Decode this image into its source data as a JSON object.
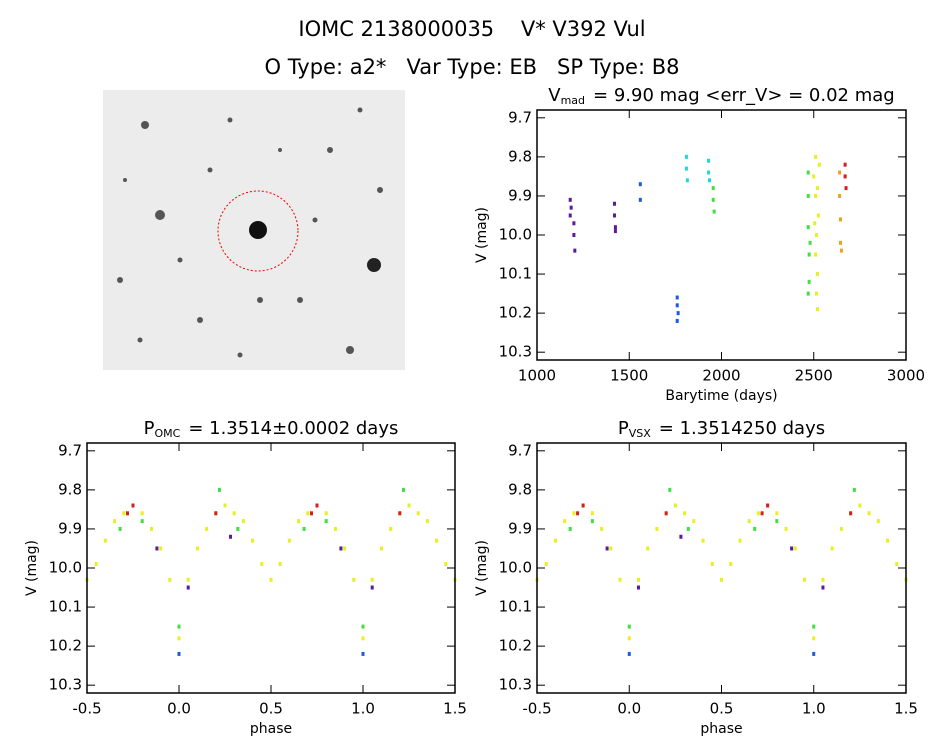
{
  "header": {
    "title": "IOMC 2138000035    V* V392 Vul",
    "subtitle": "O Type: a2*   Var Type: EB   SP Type: B8"
  },
  "chart_data": [
    {
      "type": "scatter",
      "title": "V",
      "title_sub": "mad",
      "title_rest": "= 9.90 mag <err_V> = 0.02 mag",
      "xlabel": "Barytime (days)",
      "ylabel": "V (mag)",
      "xlim": [
        1000,
        3000
      ],
      "xticks": [
        1000,
        1500,
        2000,
        2500,
        3000
      ],
      "ylim": [
        10.32,
        9.68
      ],
      "yticks": [
        9.7,
        9.8,
        9.9,
        {
          "value": 10,
          "label": "10.0"
        },
        10.1,
        10.2,
        10.3
      ],
      "series": [
        {
          "color": "#5a1a9a",
          "x": [
            1180,
            1180,
            1185,
            1200,
            1200,
            1205,
            1420,
            1420,
            1425,
            1425
          ],
          "values": [
            9.91,
            9.95,
            9.93,
            9.97,
            10.0,
            10.04,
            9.92,
            9.95,
            9.98,
            9.99
          ]
        },
        {
          "color": "#1e5adc",
          "x": [
            1560,
            1560,
            1760,
            1760,
            1765,
            1760
          ],
          "values": [
            9.87,
            9.91,
            10.16,
            10.18,
            10.2,
            10.22
          ]
        },
        {
          "color": "#20d8d8",
          "x": [
            1810,
            1810,
            1815,
            1930,
            1930,
            1935
          ],
          "values": [
            9.8,
            9.83,
            9.86,
            9.81,
            9.84,
            9.86
          ]
        },
        {
          "color": "#40e040",
          "x": [
            1955,
            1955,
            1960,
            2470,
            2470,
            2470,
            2475,
            2475,
            2470,
            2480
          ],
          "values": [
            9.88,
            9.91,
            9.94,
            9.84,
            9.9,
            9.98,
            10.05,
            10.12,
            10.15,
            10.02
          ]
        },
        {
          "color": "#e8f020",
          "x": [
            2500,
            2510,
            2510,
            2515,
            2520,
            2520,
            2525,
            2530,
            2510,
            2515,
            2520,
            2505
          ],
          "values": [
            9.85,
            9.8,
            9.9,
            10.0,
            10.1,
            10.19,
            9.95,
            9.82,
            10.05,
            10.15,
            9.88,
            9.97
          ]
        },
        {
          "color": "#f0a020",
          "x": [
            2640,
            2640,
            2645,
            2645,
            2650
          ],
          "values": [
            9.84,
            9.9,
            9.96,
            10.02,
            10.04
          ]
        },
        {
          "color": "#d02020",
          "x": [
            2670,
            2670,
            2675
          ],
          "values": [
            9.82,
            9.85,
            9.88
          ]
        }
      ]
    },
    {
      "type": "scatter",
      "title": "P",
      "title_sub": "OMC",
      "title_rest": "= 1.3514±0.0002 days",
      "xlabel": "phase",
      "ylabel": "V (mag)",
      "xlim": [
        -0.5,
        1.5
      ],
      "xticks": [
        -0.5,
        {
          "value": 0,
          "label": "0.0"
        },
        0.5,
        {
          "value": 1,
          "label": "1.0"
        },
        1.5
      ],
      "ylim": [
        10.32,
        9.68
      ],
      "yticks": [
        9.7,
        9.8,
        9.9,
        {
          "value": 10,
          "label": "10.0"
        },
        10.1,
        10.2,
        10.3
      ],
      "series": [
        {
          "color": "#e8f020",
          "x": [
            -0.5,
            -0.45,
            -0.4,
            -0.35,
            -0.3,
            -0.25,
            -0.2,
            -0.15,
            -0.1,
            -0.05,
            0,
            0.05,
            0.1,
            0.15,
            0.2,
            0.25,
            0.3,
            0.35,
            0.4,
            0.45,
            0.5,
            0.55,
            0.6,
            0.65,
            0.7,
            0.75,
            0.8,
            0.85,
            0.9,
            0.95,
            1,
            1.05,
            1.1,
            1.15,
            1.2,
            1.25,
            1.3,
            1.35,
            1.4,
            1.45,
            1.5
          ],
          "values": [
            10.03,
            9.99,
            9.93,
            9.88,
            9.86,
            9.84,
            9.86,
            9.9,
            9.95,
            10.03,
            10.18,
            10.03,
            9.95,
            9.9,
            9.86,
            9.84,
            9.86,
            9.88,
            9.93,
            9.99,
            10.03,
            9.99,
            9.93,
            9.88,
            9.86,
            9.84,
            9.86,
            9.9,
            9.95,
            10.03,
            10.18,
            10.03,
            9.95,
            9.9,
            9.86,
            9.84,
            9.86,
            9.88,
            9.93,
            9.99,
            10.03
          ]
        },
        {
          "color": "#40e040",
          "x": [
            -0.32,
            -0.2,
            0.0,
            0.22,
            0.32,
            0.68,
            0.8,
            1.0,
            1.22
          ],
          "values": [
            9.9,
            9.88,
            10.15,
            9.8,
            9.9,
            9.9,
            9.88,
            10.15,
            9.8
          ]
        },
        {
          "color": "#d02020",
          "x": [
            -0.28,
            -0.25,
            0.2,
            0.72,
            0.75,
            1.2
          ],
          "values": [
            9.86,
            9.84,
            9.86,
            9.86,
            9.84,
            9.86
          ]
        },
        {
          "color": "#5a1a9a",
          "x": [
            -0.12,
            0.05,
            0.28,
            0.88,
            1.05
          ],
          "values": [
            9.95,
            10.05,
            9.92,
            9.95,
            10.05
          ]
        },
        {
          "color": "#1e5adc",
          "x": [
            0.0,
            1.0
          ],
          "values": [
            10.22,
            10.22
          ]
        }
      ]
    },
    {
      "type": "scatter",
      "title": "P",
      "title_sub": "VSX",
      "title_rest": "= 1.3514250 days",
      "xlabel": "phase",
      "ylabel": "V (mag)",
      "xlim": [
        -0.5,
        1.5
      ],
      "xticks": [
        -0.5,
        {
          "value": 0,
          "label": "0.0"
        },
        0.5,
        {
          "value": 1,
          "label": "1.0"
        },
        1.5
      ],
      "ylim": [
        10.32,
        9.68
      ],
      "yticks": [
        9.7,
        9.8,
        9.9,
        {
          "value": 10,
          "label": "10.0"
        },
        10.1,
        10.2,
        10.3
      ],
      "series": [
        {
          "color": "#e8f020",
          "x": [
            -0.5,
            -0.45,
            -0.4,
            -0.35,
            -0.3,
            -0.25,
            -0.2,
            -0.15,
            -0.1,
            -0.05,
            0,
            0.05,
            0.1,
            0.15,
            0.2,
            0.25,
            0.3,
            0.35,
            0.4,
            0.45,
            0.5,
            0.55,
            0.6,
            0.65,
            0.7,
            0.75,
            0.8,
            0.85,
            0.9,
            0.95,
            1,
            1.05,
            1.1,
            1.15,
            1.2,
            1.25,
            1.3,
            1.35,
            1.4,
            1.45,
            1.5
          ],
          "values": [
            10.03,
            9.99,
            9.93,
            9.88,
            9.86,
            9.84,
            9.86,
            9.9,
            9.95,
            10.03,
            10.18,
            10.03,
            9.95,
            9.9,
            9.86,
            9.84,
            9.86,
            9.88,
            9.93,
            9.99,
            10.03,
            9.99,
            9.93,
            9.88,
            9.86,
            9.84,
            9.86,
            9.9,
            9.95,
            10.03,
            10.18,
            10.03,
            9.95,
            9.9,
            9.86,
            9.84,
            9.86,
            9.88,
            9.93,
            9.99,
            10.03
          ]
        },
        {
          "color": "#40e040",
          "x": [
            -0.32,
            -0.2,
            0.0,
            0.22,
            0.32,
            0.68,
            0.8,
            1.0,
            1.22
          ],
          "values": [
            9.9,
            9.88,
            10.15,
            9.8,
            9.9,
            9.9,
            9.88,
            10.15,
            9.8
          ]
        },
        {
          "color": "#d02020",
          "x": [
            -0.28,
            -0.25,
            0.2,
            0.72,
            0.75,
            1.2
          ],
          "values": [
            9.86,
            9.84,
            9.86,
            9.86,
            9.84,
            9.86
          ]
        },
        {
          "color": "#5a1a9a",
          "x": [
            -0.12,
            0.05,
            0.28,
            0.88,
            1.05
          ],
          "values": [
            9.95,
            10.05,
            9.92,
            9.95,
            10.05
          ]
        },
        {
          "color": "#1e5adc",
          "x": [
            0.0,
            1.0
          ],
          "values": [
            10.22,
            10.22
          ]
        }
      ]
    }
  ]
}
